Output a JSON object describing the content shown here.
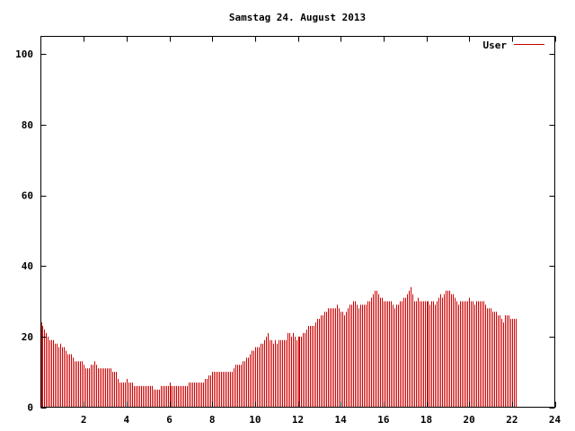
{
  "colors": {
    "series": "#cc0000",
    "frame": "#000000",
    "background": "#ffffff"
  },
  "chart_data": {
    "type": "bar",
    "title": "Samstag 24. August 2013",
    "xlim": [
      0,
      24
    ],
    "ylim": [
      0,
      105
    ],
    "x_ticks": [
      2,
      4,
      6,
      8,
      10,
      12,
      14,
      16,
      18,
      20,
      22,
      24
    ],
    "y_ticks": [
      0,
      20,
      40,
      60,
      80,
      100
    ],
    "y_tick_labels": [
      "0",
      "20",
      "40",
      "60",
      "80",
      "100"
    ],
    "x_tick_labels": [
      "2",
      "4",
      "6",
      "8",
      "10",
      "12",
      "14",
      "16",
      "18",
      "20",
      "22",
      "24"
    ],
    "legend": {
      "position": "top-right",
      "label": "User"
    },
    "bar_interval_minutes": 5,
    "series": [
      {
        "name": "User",
        "values": [
          24,
          23,
          22,
          21,
          20,
          19,
          19,
          19,
          18,
          18,
          17,
          18,
          17,
          17,
          16,
          15,
          15,
          15,
          14,
          13,
          13,
          13,
          13,
          13,
          12,
          11,
          11,
          11,
          12,
          12,
          13,
          12,
          11,
          11,
          11,
          11,
          11,
          11,
          11,
          11,
          10,
          10,
          10,
          8,
          7,
          7,
          7,
          7,
          8,
          7,
          7,
          7,
          6,
          6,
          6,
          6,
          6,
          6,
          6,
          6,
          6,
          6,
          6,
          5,
          5,
          5,
          5,
          6,
          6,
          6,
          6,
          6,
          7,
          6,
          6,
          6,
          6,
          6,
          6,
          6,
          6,
          6,
          6,
          7,
          7,
          7,
          7,
          7,
          7,
          7,
          7,
          7,
          8,
          8,
          9,
          9,
          10,
          10,
          10,
          10,
          10,
          10,
          10,
          10,
          10,
          10,
          10,
          10,
          11,
          12,
          12,
          12,
          12,
          13,
          13,
          14,
          14,
          15,
          16,
          16,
          17,
          17,
          17,
          18,
          18,
          19,
          20,
          21,
          19,
          19,
          18,
          19,
          18,
          19,
          19,
          19,
          19,
          19,
          21,
          21,
          20,
          21,
          20,
          19,
          20,
          20,
          20,
          21,
          21,
          22,
          23,
          23,
          23,
          23,
          24,
          25,
          25,
          26,
          26,
          27,
          27,
          28,
          28,
          28,
          28,
          28,
          29,
          28,
          27,
          27,
          26,
          27,
          28,
          29,
          29,
          30,
          30,
          29,
          28,
          29,
          29,
          29,
          29,
          30,
          30,
          31,
          32,
          33,
          33,
          32,
          31,
          31,
          30,
          30,
          30,
          30,
          30,
          29,
          28,
          29,
          29,
          30,
          30,
          31,
          31,
          32,
          33,
          34,
          32,
          30,
          30,
          31,
          30,
          30,
          30,
          30,
          30,
          30,
          29,
          30,
          30,
          29,
          30,
          31,
          32,
          31,
          32,
          33,
          33,
          33,
          32,
          32,
          31,
          30,
          29,
          30,
          30,
          30,
          30,
          30,
          31,
          30,
          30,
          29,
          30,
          30,
          30,
          30,
          30,
          29,
          28,
          28,
          28,
          27,
          27,
          27,
          26,
          26,
          25,
          24,
          26,
          26,
          26,
          25,
          25,
          25,
          25
        ]
      }
    ]
  }
}
